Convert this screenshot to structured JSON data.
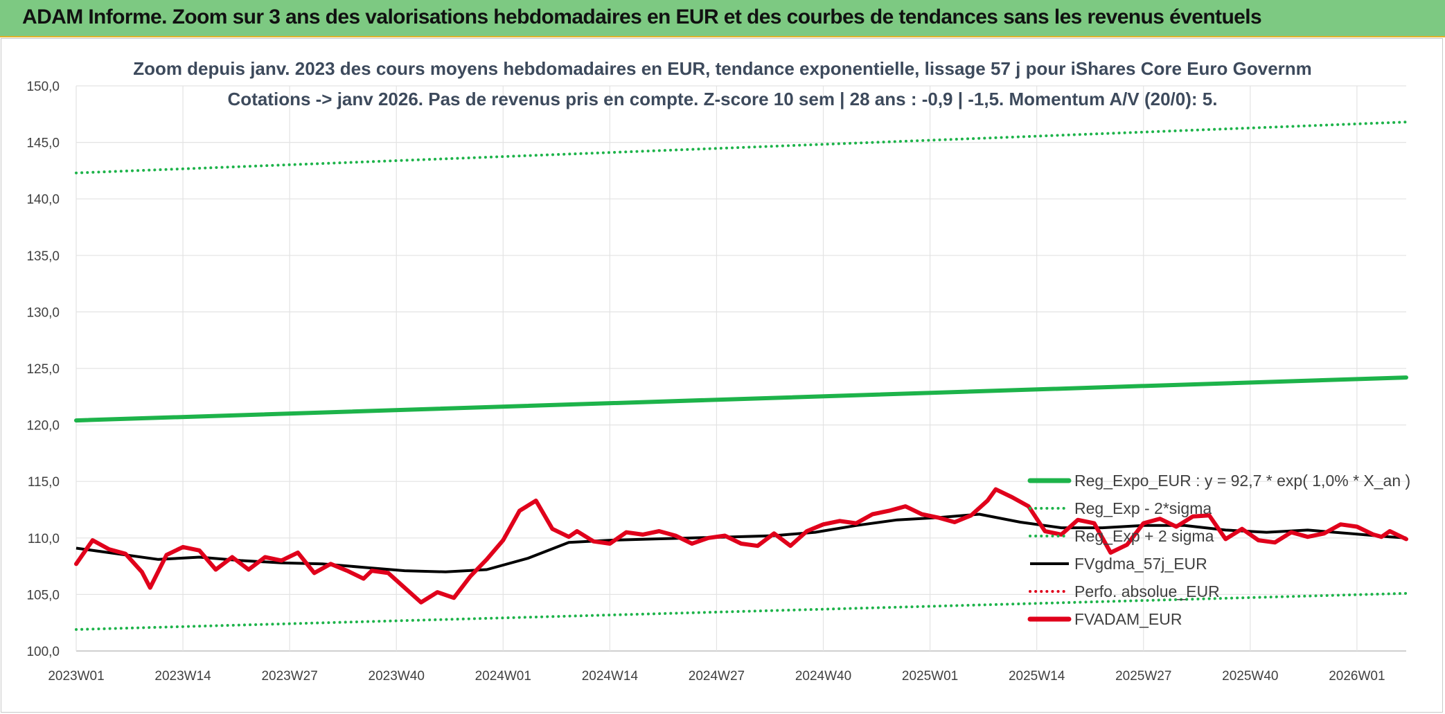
{
  "banner": {
    "title": "ADAM Informe. Zoom sur 3 ans des valorisations hebdomadaires en EUR et des courbes de tendances sans les revenus éventuels"
  },
  "chart_data": {
    "type": "line",
    "title_line1": "Zoom depuis janv. 2023 des cours moyens hebdomadaires en EUR, tendance exponentielle, lissage 57 j pour iShares Core Euro Governm",
    "title_line2": "Cotations -> janv 2026. Pas de revenus pris en compte. Z-score 10 sem | 28 ans : -0,9 | -1,5. Momentum A/V (20/0): 5.",
    "ylim": [
      100,
      150
    ],
    "y_ticks": [
      "100,0",
      "105,0",
      "110,0",
      "115,0",
      "120,0",
      "125,0",
      "130,0",
      "135,0",
      "140,0",
      "145,0",
      "150,0"
    ],
    "x_ticks": [
      "2023W01",
      "2023W14",
      "2023W27",
      "2023W40",
      "2024W01",
      "2024W14",
      "2024W27",
      "2024W40",
      "2025W01",
      "2025W14",
      "2025W27",
      "2025W40",
      "2026W01"
    ],
    "x_range_weeks": [
      0,
      162
    ],
    "grid": true,
    "legend_position": "right-bottom",
    "series": [
      {
        "name": "Reg_Expo_EUR : y = 92,7 * exp( 1,0% *  X_an )",
        "color": "#1db34a",
        "style": "thick-solid",
        "x": [
          0,
          162
        ],
        "values": [
          120.4,
          124.2
        ]
      },
      {
        "name": "Reg_Exp - 2*sigma",
        "color": "#1db34a",
        "style": "dotted",
        "x": [
          0,
          162
        ],
        "values": [
          101.9,
          105.1
        ]
      },
      {
        "name": "Reg_Exp + 2 sigma",
        "color": "#1db34a",
        "style": "dotted",
        "x": [
          0,
          162
        ],
        "values": [
          142.3,
          146.8
        ]
      },
      {
        "name": "FVgdma_57j_EUR",
        "color": "#000000",
        "style": "solid",
        "x": [
          0,
          5,
          10,
          15,
          20,
          25,
          30,
          35,
          40,
          45,
          50,
          55,
          60,
          65,
          70,
          75,
          80,
          85,
          90,
          95,
          100,
          105,
          110,
          115,
          120,
          125,
          130,
          135,
          140,
          145,
          150,
          155,
          160,
          162
        ],
        "values": [
          109.1,
          108.6,
          108.1,
          108.3,
          108.0,
          107.8,
          107.7,
          107.4,
          107.1,
          107.0,
          107.2,
          108.2,
          109.6,
          109.8,
          109.9,
          110.0,
          110.1,
          110.2,
          110.5,
          111.1,
          111.6,
          111.8,
          112.1,
          111.4,
          110.9,
          110.9,
          111.1,
          111.1,
          110.7,
          110.5,
          110.7,
          110.4,
          110.1,
          110.0
        ]
      },
      {
        "name": "Perfo. absolue_EUR",
        "color": "#e0001b",
        "style": "dotted",
        "x": [],
        "values": []
      },
      {
        "name": "FVADAM_EUR",
        "color": "#e0001b",
        "style": "thick-solid",
        "x": [
          0,
          2,
          4,
          6,
          8,
          9,
          11,
          13,
          15,
          17,
          19,
          21,
          23,
          25,
          27,
          29,
          31,
          33,
          35,
          36,
          38,
          40,
          42,
          44,
          46,
          48,
          50,
          52,
          54,
          56,
          58,
          60,
          61,
          63,
          65,
          67,
          69,
          71,
          73,
          75,
          77,
          79,
          81,
          83,
          85,
          87,
          89,
          91,
          93,
          95,
          97,
          99,
          101,
          103,
          105,
          107,
          109,
          111,
          112,
          114,
          116,
          118,
          120,
          122,
          124,
          126,
          128,
          130,
          132,
          134,
          136,
          138,
          140,
          142,
          144,
          146,
          148,
          150,
          152,
          154,
          156,
          158,
          159,
          160,
          162
        ],
        "values": [
          107.7,
          109.8,
          109.0,
          108.6,
          107.0,
          105.6,
          108.5,
          109.2,
          108.9,
          107.2,
          108.3,
          107.2,
          108.3,
          108.0,
          108.7,
          106.9,
          107.7,
          107.1,
          106.4,
          107.1,
          106.9,
          105.6,
          104.3,
          105.2,
          104.7,
          106.6,
          108.1,
          109.8,
          112.4,
          113.3,
          110.8,
          110.1,
          110.6,
          109.7,
          109.5,
          110.5,
          110.3,
          110.6,
          110.2,
          109.5,
          110.0,
          110.2,
          109.5,
          109.3,
          110.4,
          109.3,
          110.6,
          111.2,
          111.5,
          111.3,
          112.1,
          112.4,
          112.8,
          112.1,
          111.8,
          111.4,
          112.0,
          113.3,
          114.3,
          113.6,
          112.8,
          110.6,
          110.3,
          111.6,
          111.3,
          108.7,
          109.4,
          111.3,
          111.7,
          111.0,
          111.9,
          112.0,
          109.9,
          110.8,
          109.8,
          109.6,
          110.5,
          110.1,
          110.4,
          111.2,
          111.0,
          110.3,
          110.1,
          110.6,
          109.9
        ]
      }
    ]
  }
}
